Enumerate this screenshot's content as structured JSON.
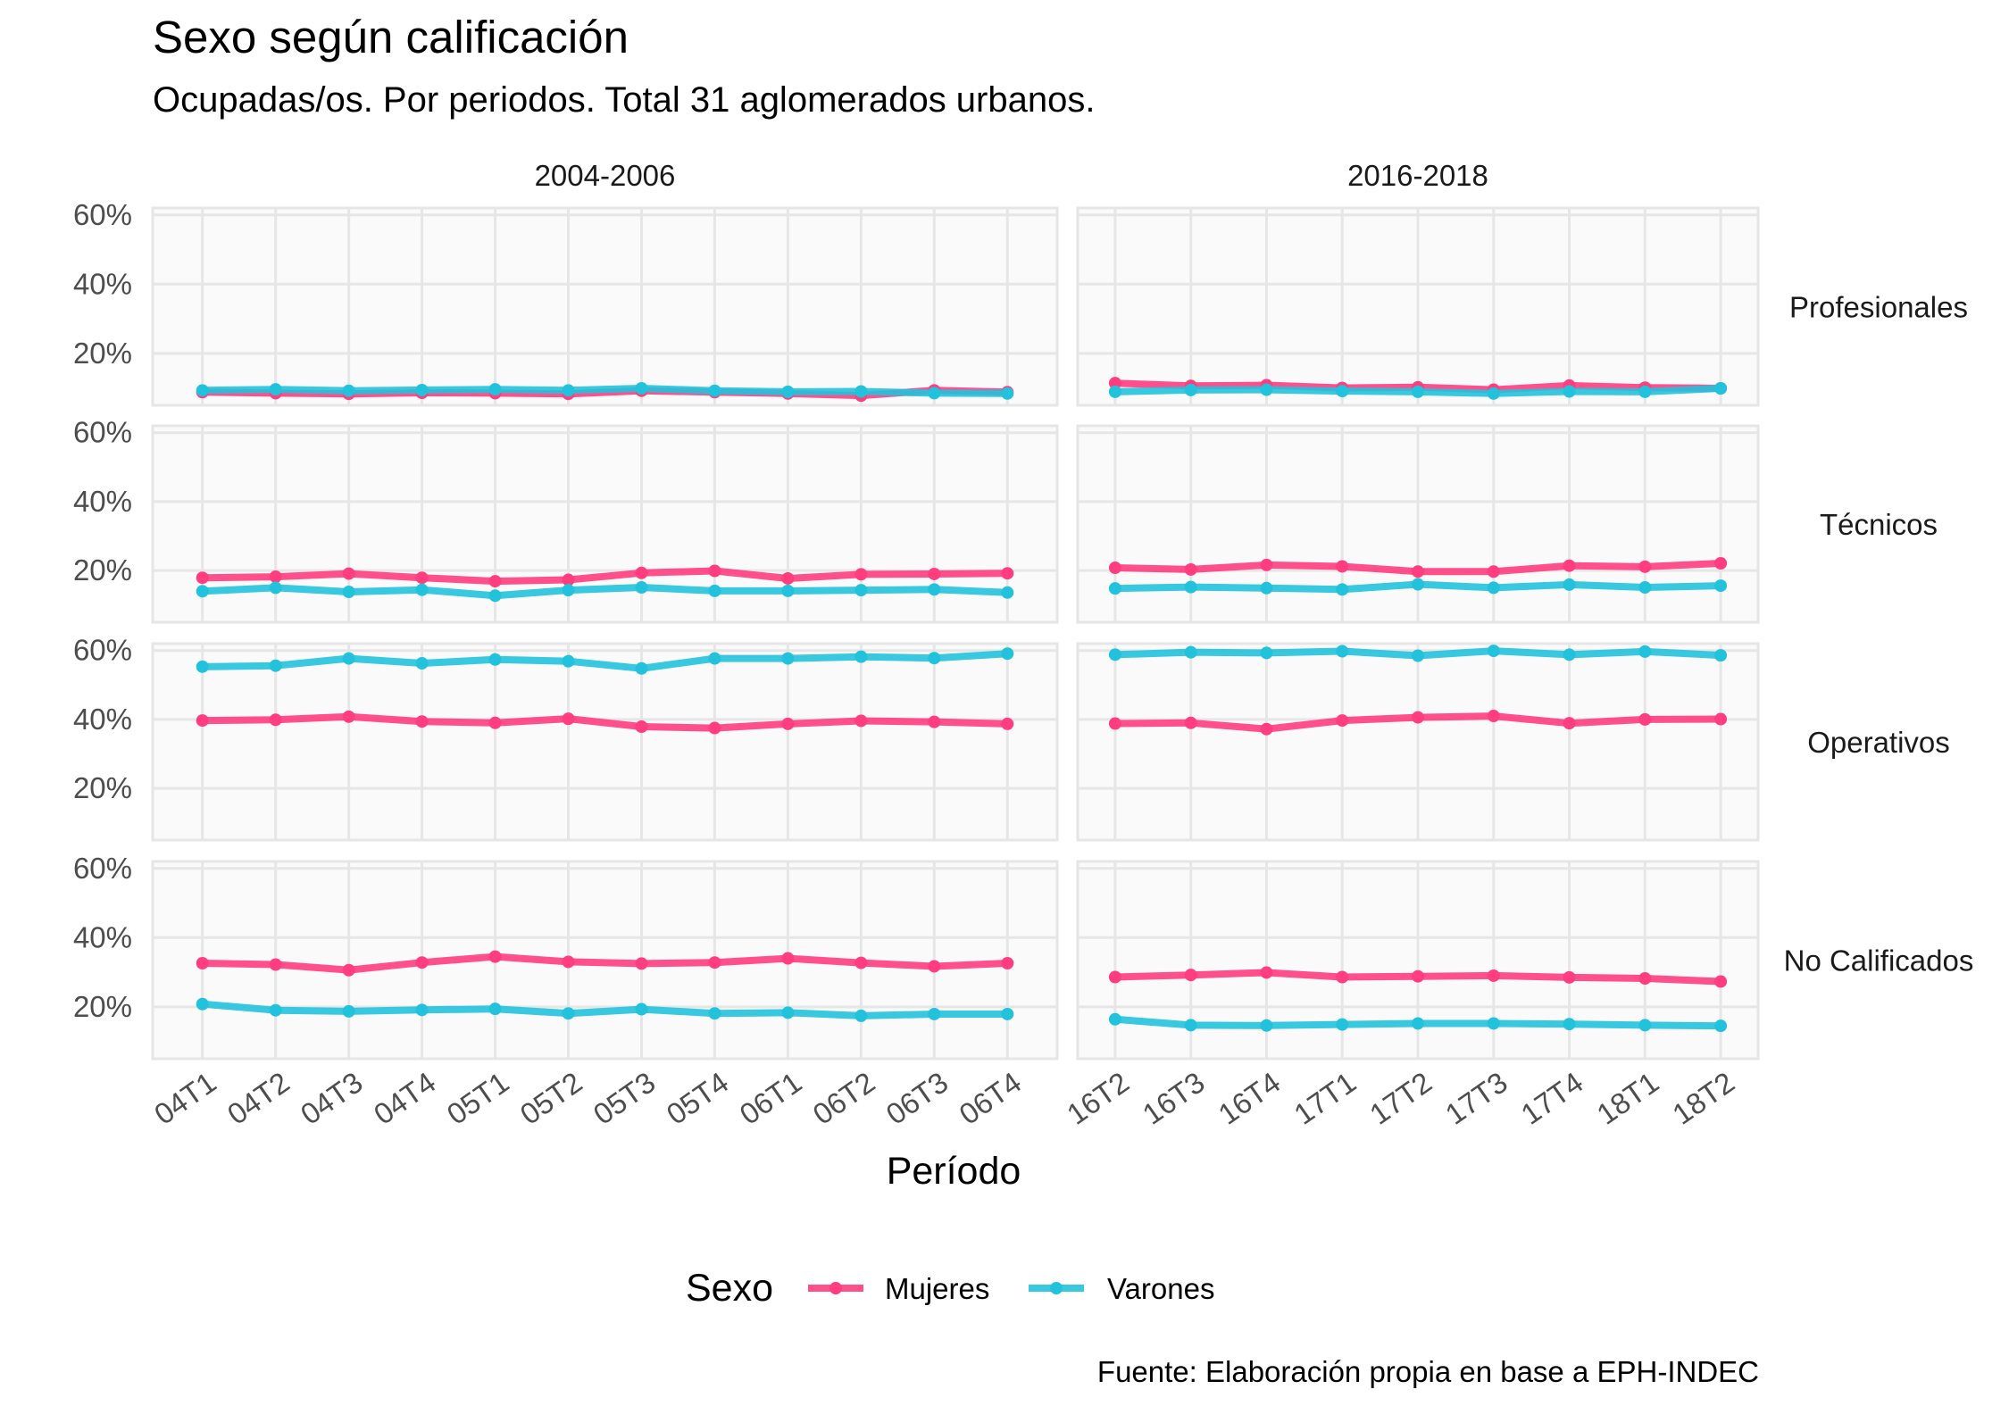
{
  "colors": {
    "Mujeres": "#ff3d7f",
    "Varones": "#22c2dc",
    "panel_bg": "#fafafa",
    "grid": "#e6e6e6"
  },
  "chart_data": {
    "type": "line",
    "title": "Sexo según calificación",
    "subtitle": "Ocupadas/os. Por periodos. Total 31 aglomerados urbanos.",
    "xlabel": "Período",
    "ylabel": "",
    "caption": "Fuente: Elaboración propia en base a EPH-INDEC",
    "legend_title": "Sexo",
    "legend_position": "bottom",
    "y_ticks": [
      "20%",
      "40%",
      "60%"
    ],
    "ylim": [
      5,
      62
    ],
    "grid": true,
    "columns": [
      {
        "label": "2004-2006",
        "categories": [
          "04T1",
          "04T2",
          "04T3",
          "04T4",
          "05T1",
          "05T2",
          "05T3",
          "05T4",
          "06T1",
          "06T2",
          "06T3",
          "06T4"
        ]
      },
      {
        "label": "2016-2018",
        "categories": [
          "16T2",
          "16T3",
          "16T4",
          "17T1",
          "17T2",
          "17T3",
          "17T4",
          "18T1",
          "18T2"
        ]
      }
    ],
    "rows": [
      {
        "label": "Profesionales",
        "panels": [
          {
            "series": [
              {
                "name": "Mujeres",
                "values": [
                  8.8,
                  8.5,
                  8.3,
                  8.6,
                  8.5,
                  8.3,
                  9.2,
                  8.8,
                  8.4,
                  7.8,
                  9.3,
                  8.8
                ]
              },
              {
                "name": "Varones",
                "values": [
                  9.3,
                  9.6,
                  9.2,
                  9.4,
                  9.6,
                  9.3,
                  9.9,
                  9.2,
                  8.9,
                  9.0,
                  8.5,
                  8.4
                ]
              }
            ]
          },
          {
            "series": [
              {
                "name": "Mujeres",
                "values": [
                  11.4,
                  10.6,
                  10.8,
                  10.0,
                  10.2,
                  9.5,
                  10.7,
                  10.1,
                  9.9
                ]
              },
              {
                "name": "Varones",
                "values": [
                  8.9,
                  9.4,
                  9.5,
                  9.1,
                  8.9,
                  8.4,
                  9.0,
                  8.9,
                  9.9
                ]
              }
            ]
          }
        ]
      },
      {
        "label": "Técnicos",
        "panels": [
          {
            "series": [
              {
                "name": "Mujeres",
                "values": [
                  17.9,
                  18.2,
                  19.1,
                  17.9,
                  16.9,
                  17.3,
                  19.3,
                  19.9,
                  17.7,
                  18.9,
                  19.0,
                  19.2
                ]
              },
              {
                "name": "Varones",
                "values": [
                  14.0,
                  15.0,
                  13.8,
                  14.4,
                  12.7,
                  14.3,
                  15.1,
                  14.1,
                  14.1,
                  14.3,
                  14.5,
                  13.6
                ]
              }
            ]
          },
          {
            "series": [
              {
                "name": "Mujeres",
                "values": [
                  20.8,
                  20.3,
                  21.6,
                  21.2,
                  19.7,
                  19.7,
                  21.4,
                  21.1,
                  22.1
                ]
              },
              {
                "name": "Varones",
                "values": [
                  14.8,
                  15.2,
                  14.9,
                  14.5,
                  16.0,
                  15.0,
                  15.9,
                  15.1,
                  15.6
                ]
              }
            ]
          }
        ]
      },
      {
        "label": "Operativos",
        "panels": [
          {
            "series": [
              {
                "name": "Mujeres",
                "values": [
                  39.7,
                  39.9,
                  40.8,
                  39.4,
                  39.0,
                  40.2,
                  37.9,
                  37.5,
                  38.7,
                  39.6,
                  39.3,
                  38.7
                ]
              },
              {
                "name": "Varones",
                "values": [
                  55.3,
                  55.6,
                  57.7,
                  56.3,
                  57.4,
                  56.9,
                  54.8,
                  57.7,
                  57.7,
                  58.2,
                  57.8,
                  59.1
                ]
              }
            ]
          },
          {
            "series": [
              {
                "name": "Mujeres",
                "values": [
                  38.8,
                  39.0,
                  37.2,
                  39.7,
                  40.6,
                  41.0,
                  38.9,
                  40.0,
                  40.1
                ]
              },
              {
                "name": "Varones",
                "values": [
                  58.8,
                  59.5,
                  59.3,
                  59.8,
                  58.5,
                  59.9,
                  58.8,
                  59.7,
                  58.6
                ]
              }
            ]
          }
        ]
      },
      {
        "label": "No Calificados",
        "panels": [
          {
            "series": [
              {
                "name": "Mujeres",
                "values": [
                  32.6,
                  32.2,
                  30.6,
                  32.8,
                  34.5,
                  33.0,
                  32.5,
                  32.8,
                  34.0,
                  32.7,
                  31.7,
                  32.6
                ]
              },
              {
                "name": "Varones",
                "values": [
                  20.8,
                  19.0,
                  18.7,
                  19.1,
                  19.4,
                  18.1,
                  19.3,
                  18.1,
                  18.3,
                  17.4,
                  17.9,
                  17.9
                ]
              }
            ]
          },
          {
            "series": [
              {
                "name": "Mujeres",
                "values": [
                  28.6,
                  29.2,
                  29.9,
                  28.6,
                  28.8,
                  29.0,
                  28.5,
                  28.2,
                  27.3
                ]
              },
              {
                "name": "Varones",
                "values": [
                  16.4,
                  14.7,
                  14.6,
                  14.9,
                  15.2,
                  15.2,
                  15.0,
                  14.7,
                  14.5
                ]
              }
            ]
          }
        ]
      }
    ]
  }
}
